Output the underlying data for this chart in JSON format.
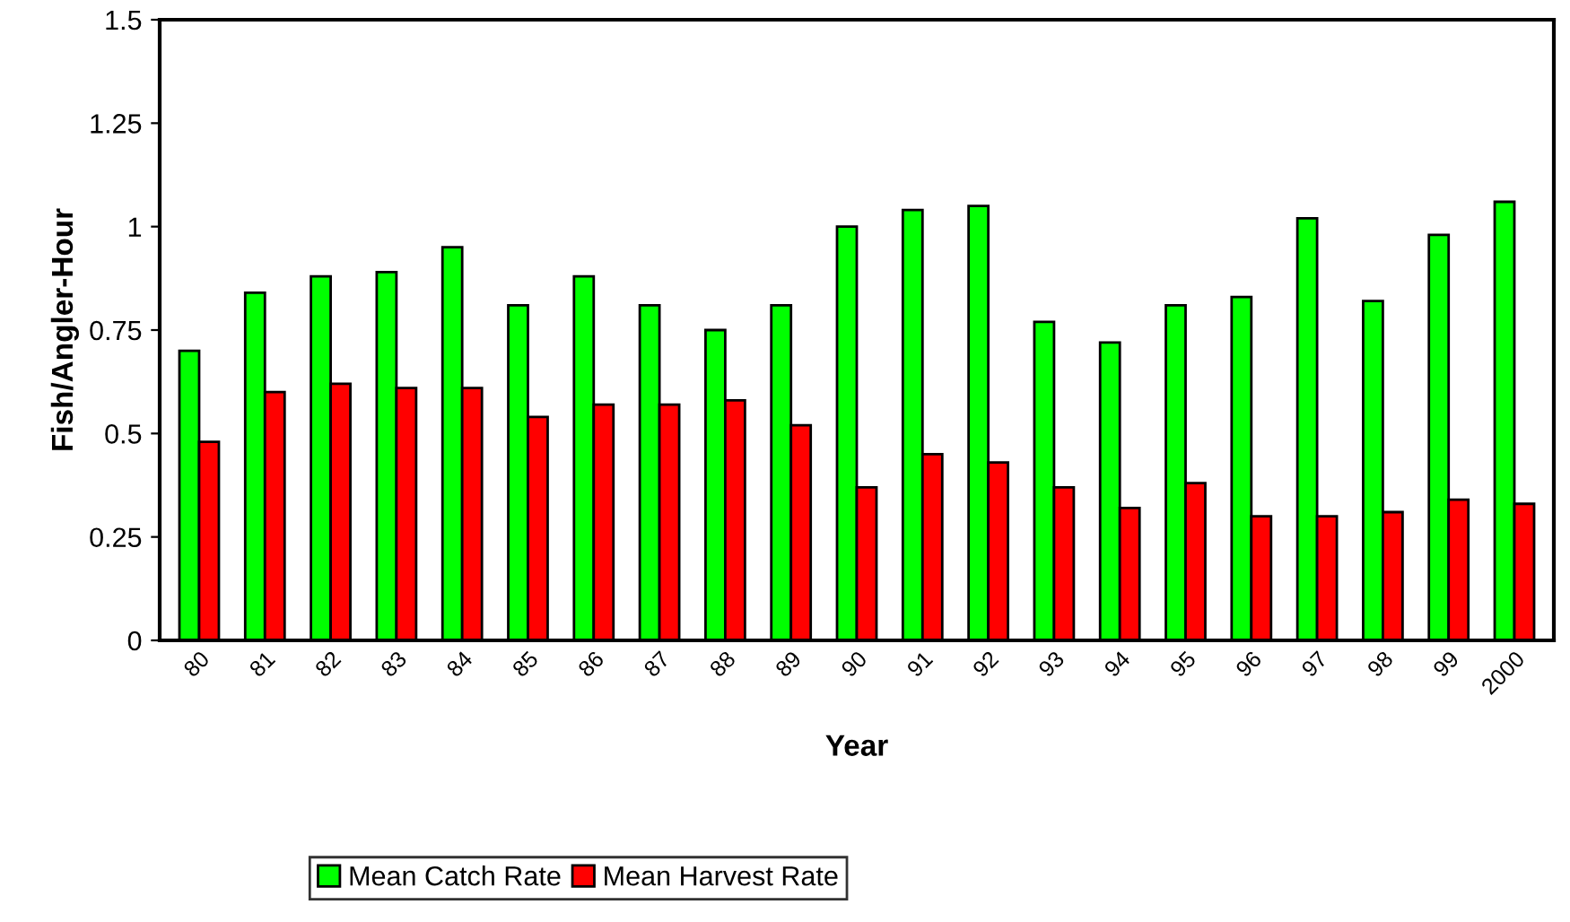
{
  "chart_data": {
    "type": "bar",
    "xlabel": "Year",
    "ylabel": "Fish/Angler-Hour",
    "categories": [
      "80",
      "81",
      "82",
      "83",
      "84",
      "85",
      "86",
      "87",
      "88",
      "89",
      "90",
      "91",
      "92",
      "93",
      "94",
      "95",
      "96",
      "97",
      "98",
      "99",
      "2000"
    ],
    "series": [
      {
        "name": "Mean Catch Rate",
        "color": "#00ff00",
        "values": [
          0.7,
          0.84,
          0.88,
          0.89,
          0.95,
          0.81,
          0.88,
          0.81,
          0.75,
          0.81,
          1.0,
          1.04,
          1.05,
          0.77,
          0.72,
          0.81,
          0.83,
          1.02,
          0.82,
          0.98,
          1.06
        ]
      },
      {
        "name": "Mean Harvest Rate",
        "color": "#ff0000",
        "values": [
          0.48,
          0.6,
          0.62,
          0.61,
          0.61,
          0.54,
          0.57,
          0.57,
          0.58,
          0.52,
          0.37,
          0.45,
          0.43,
          0.37,
          0.32,
          0.38,
          0.3,
          0.3,
          0.31,
          0.34,
          0.33
        ]
      }
    ],
    "ylim": [
      0,
      1.5
    ],
    "yticks": [
      0,
      0.25,
      0.5,
      0.75,
      1,
      1.25,
      1.5
    ],
    "grid": false,
    "legend": "bottom"
  }
}
